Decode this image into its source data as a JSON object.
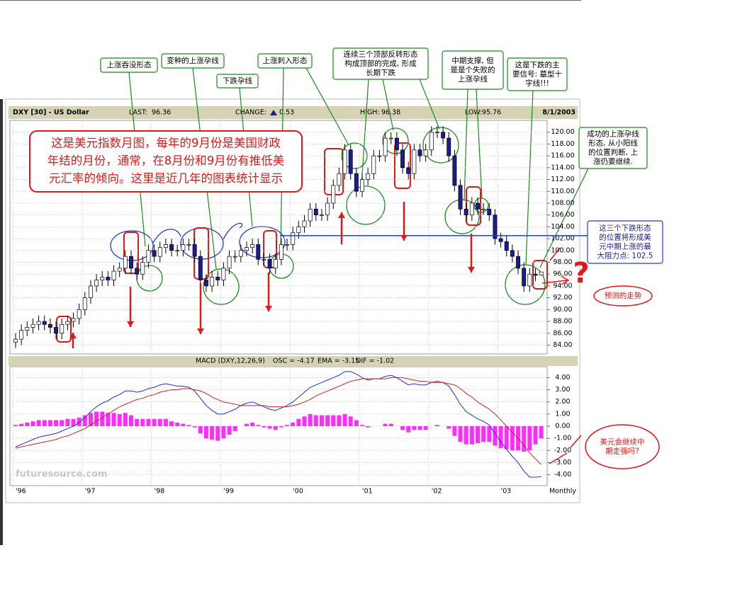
{
  "chart_data": [
    {
      "type": "candlestick",
      "title": "DXY [30] - US Dollar",
      "stats": [
        {
          "label": "LAST:",
          "value": 96.36
        },
        {
          "label": "CHANGE:",
          "value": 0.53
        },
        {
          "label": "HIGH:",
          "value": 96.38
        },
        {
          "label": "LOW:",
          "value": 95.76
        }
      ],
      "date": "8/1/2003",
      "categories": [
        "'96",
        null,
        null,
        null,
        null,
        null,
        null,
        null,
        null,
        null,
        null,
        null,
        "'97",
        null,
        null,
        null,
        null,
        null,
        null,
        null,
        null,
        null,
        null,
        null,
        "'98",
        null,
        null,
        null,
        null,
        null,
        null,
        null,
        null,
        null,
        null,
        null,
        "'99",
        null,
        null,
        null,
        null,
        null,
        null,
        null,
        null,
        null,
        null,
        null,
        "'00",
        null,
        null,
        null,
        null,
        null,
        null,
        null,
        null,
        null,
        null,
        null,
        "'01",
        null,
        null,
        null,
        null,
        null,
        null,
        null,
        null,
        null,
        null,
        null,
        "'02",
        null,
        null,
        null,
        null,
        null,
        null,
        null,
        null,
        null,
        null,
        null,
        "'03",
        null,
        null,
        null,
        null,
        null,
        null,
        null
      ],
      "open": [
        84.5,
        85,
        86.5,
        87,
        87.5,
        88,
        87.5,
        87,
        86,
        87.5,
        88,
        88.5,
        90,
        92,
        94,
        95,
        95.5,
        95,
        96.5,
        97,
        99,
        97,
        96,
        98,
        100,
        99,
        100.5,
        101,
        100,
        100,
        101,
        101,
        99,
        95,
        94,
        95.5,
        95,
        97,
        99,
        99,
        100,
        100.5,
        101,
        98.5,
        98.5,
        97,
        98.5,
        101,
        101,
        103,
        104,
        105,
        107,
        106,
        106,
        108,
        111,
        113,
        117,
        113,
        110,
        112,
        113,
        116,
        116,
        119,
        119,
        117,
        114,
        113,
        117,
        116,
        117,
        120,
        120,
        119,
        116,
        111,
        107,
        106,
        108,
        107,
        107,
        106,
        102,
        101.5,
        100,
        99,
        97,
        94,
        96,
        95.83
      ],
      "high": [
        86,
        87.5,
        88,
        88.5,
        89,
        89,
        88.5,
        88,
        88.5,
        89,
        89.5,
        91,
        93,
        95,
        96,
        96.5,
        96.5,
        97.5,
        98,
        100,
        100,
        98,
        99,
        101,
        101,
        101.5,
        102,
        102,
        101,
        102,
        102,
        102,
        100,
        96,
        96.5,
        96.5,
        98,
        100,
        100,
        101,
        101.5,
        102,
        102,
        99.5,
        99.5,
        99.5,
        102,
        102,
        104,
        105,
        106,
        108,
        108,
        107,
        109,
        112,
        114,
        118,
        118,
        114,
        113,
        114,
        117,
        117,
        120,
        120,
        120,
        118,
        115,
        118,
        118,
        118,
        121,
        121,
        121,
        120,
        117,
        112,
        108,
        109,
        109,
        108,
        108,
        107,
        103,
        102.5,
        101,
        100,
        98,
        97,
        97,
        96.38
      ],
      "low": [
        83.5,
        84,
        85.5,
        86,
        86.5,
        86.5,
        86,
        85,
        85,
        86.5,
        87,
        87.5,
        89,
        91,
        93,
        94,
        94,
        94,
        95.5,
        96,
        96,
        95,
        95,
        97,
        98,
        98,
        99.5,
        99,
        99,
        99,
        100,
        98,
        94,
        93,
        93,
        94,
        94,
        96,
        98,
        98,
        99,
        99.5,
        97.5,
        97.5,
        96,
        96,
        97.5,
        100,
        100,
        102,
        103,
        104,
        105,
        105,
        105,
        107,
        110,
        112,
        112,
        109,
        109,
        111,
        112,
        115,
        115,
        118,
        116,
        113,
        112,
        112,
        115,
        115,
        116,
        119,
        118,
        115,
        110,
        106,
        105,
        105,
        106,
        106,
        105,
        101,
        100.5,
        99,
        98,
        96,
        93,
        93,
        94.8,
        95.76
      ],
      "close": [
        85,
        86.5,
        87,
        87.5,
        88,
        87.5,
        87,
        86,
        87.5,
        88,
        88.5,
        90,
        92,
        94,
        95,
        95.5,
        95,
        96.5,
        97,
        99,
        97,
        96,
        98,
        100,
        99,
        100.5,
        101,
        100,
        100,
        101,
        101,
        99,
        95,
        94,
        95.5,
        95,
        97,
        99,
        99,
        100,
        100.5,
        101,
        98.5,
        98.5,
        97,
        98.5,
        101,
        101,
        103,
        104,
        105,
        107,
        106,
        106,
        108,
        111,
        113,
        117,
        113,
        110,
        112,
        113,
        116,
        116,
        119,
        119,
        117,
        114,
        113,
        117,
        116,
        117,
        120,
        120,
        119,
        116,
        111,
        107,
        106,
        108,
        107,
        107,
        106,
        102,
        101.5,
        100,
        99,
        97,
        94,
        96,
        95.8,
        96.36
      ],
      "up_color": "#ffffff",
      "down_color": "#1c1c8e",
      "ylim": [
        82.5,
        122
      ],
      "yticks": [
        {
          "value": 84,
          "label": "84.00"
        },
        {
          "value": 86,
          "label": "86.00"
        },
        {
          "value": 88,
          "label": "88.00"
        },
        {
          "value": 90,
          "label": "90.00"
        },
        {
          "value": 92,
          "label": "92.00"
        },
        {
          "value": 94,
          "label": "94.00"
        },
        {
          "value": 96,
          "label": "96.00"
        },
        {
          "value": 98,
          "label": "98.00"
        },
        {
          "value": 100,
          "label": "100.00"
        },
        {
          "value": 102,
          "label": "102.00"
        },
        {
          "value": 104,
          "label": "104.00"
        },
        {
          "value": 106,
          "label": "106.00"
        },
        {
          "value": 108,
          "label": "108.00"
        },
        {
          "value": 110,
          "label": "110.00"
        },
        {
          "value": 112,
          "label": "112.00"
        },
        {
          "value": 114,
          "label": "114.00"
        },
        {
          "value": 116,
          "label": "116.00"
        },
        {
          "value": 118,
          "label": "118.00"
        },
        {
          "value": 120,
          "label": "120.00"
        }
      ],
      "grid": true,
      "resistance_level": 102.5,
      "resistance_color": "#1f3fd0",
      "annotations": [
        [
          "上涨吞没形态"
        ],
        [
          "变种的上涨孕线"
        ],
        [
          "下跌孕线"
        ],
        [
          "上涨刺入形态"
        ],
        [
          "连续三个顶部反转形态",
          "构成顶部的完成, 形成",
          "长期下跌"
        ],
        [
          "中期支撑, 但",
          "是是个失败的",
          "上涨孕线"
        ],
        [
          "这是下跌的主",
          "要信号: 墓型十",
          "字线!!!"
        ],
        [
          "成功的上涨孕线",
          "形态, 从小阳线",
          "的位置判断, 上",
          "涨仍要继续."
        ],
        [
          "这三个下跌形态",
          "的位置将形成美",
          "元中期上涨的最",
          "大阻力点: 102.5"
        ],
        [
          "这是美元指数月图，每年的9月份是美国财政",
          "年结的月份，通常，在8月份和9月份有推低美",
          "元汇率的倾向。这里是近几年的图表统计显示"
        ],
        [
          "预测的走势"
        ],
        [
          "美元会继续中",
          "期走强吗?"
        ],
        [
          "?"
        ]
      ]
    },
    {
      "type": "line",
      "title": "MACD (DXY,12,26,9)",
      "series": [
        {
          "name": "OSC = -4.17",
          "color": "#1f2fd8",
          "values": [
            -1.7,
            -1.5,
            -1.3,
            -1.1,
            -0.9,
            -0.8,
            -0.7,
            -0.6,
            -0.4,
            -0.2,
            0,
            0.3,
            0.7,
            1.2,
            1.6,
            1.9,
            2.1,
            2.4,
            2.6,
            2.9,
            2.9,
            2.8,
            2.9,
            3.1,
            3.2,
            3.4,
            3.5,
            3.4,
            3.3,
            3.3,
            3.2,
            2.9,
            2.3,
            1.7,
            1.3,
            1,
            1,
            1.2,
            1.4,
            1.7,
            1.9,
            2,
            1.8,
            1.6,
            1.4,
            1.3,
            1.5,
            1.7,
            2,
            2.4,
            2.8,
            3.2,
            3.4,
            3.6,
            3.8,
            4,
            4.2,
            4.5,
            4.5,
            4.3,
            4,
            3.8,
            3.9,
            3.9,
            4.1,
            4.2,
            4,
            3.7,
            3.4,
            3.5,
            3.4,
            3.4,
            3.6,
            3.7,
            3.6,
            3.3,
            2.6,
            1.8,
            1.2,
            0.9,
            0.6,
            0.4,
            0.1,
            -0.6,
            -1.3,
            -1.9,
            -2.5,
            -3,
            -3.7,
            -4.2,
            -4.2,
            -4.17
          ]
        },
        {
          "name": "EMA = -3.15",
          "color": "#d42020",
          "values": [
            -1.8,
            -1.7,
            -1.6,
            -1.5,
            -1.4,
            -1.3,
            -1.2,
            -1.1,
            -0.9,
            -0.8,
            -0.6,
            -0.4,
            -0.2,
            0.1,
            0.4,
            0.7,
            1,
            1.3,
            1.6,
            1.8,
            2,
            2.2,
            2.3,
            2.5,
            2.6,
            2.8,
            2.9,
            3,
            3,
            3.1,
            3.1,
            3,
            2.9,
            2.7,
            2.4,
            2.2,
            2,
            1.9,
            1.8,
            1.7,
            1.7,
            1.7,
            1.7,
            1.7,
            1.6,
            1.6,
            1.6,
            1.6,
            1.7,
            1.8,
            2,
            2.2,
            2.5,
            2.7,
            2.9,
            3.1,
            3.3,
            3.5,
            3.7,
            3.8,
            3.9,
            3.9,
            3.9,
            3.9,
            3.9,
            4,
            4,
            4,
            3.9,
            3.8,
            3.7,
            3.7,
            3.6,
            3.6,
            3.6,
            3.5,
            3.4,
            3.1,
            2.7,
            2.4,
            2,
            1.7,
            1.4,
            1,
            0.5,
            0,
            -0.5,
            -1,
            -1.6,
            -2.2,
            -2.7,
            -3.15
          ]
        },
        {
          "name": "DIF = -1.02",
          "color": "#ff2cff",
          "type": "bar",
          "values": [
            0.1,
            0.2,
            0.3,
            0.4,
            0.5,
            0.5,
            0.5,
            0.5,
            0.5,
            0.6,
            0.6,
            0.7,
            0.9,
            1.1,
            1.2,
            1.2,
            1.1,
            1.1,
            1,
            1.1,
            0.9,
            0.6,
            0.6,
            0.6,
            0.6,
            0.6,
            0.6,
            0.4,
            0.3,
            0.2,
            0.1,
            -0.1,
            -0.6,
            -1,
            -1.1,
            -1.2,
            -1,
            -0.7,
            -0.4,
            0,
            0.2,
            0.3,
            0.1,
            -0.1,
            -0.2,
            -0.3,
            -0.1,
            0.1,
            0.3,
            0.6,
            0.8,
            1,
            0.9,
            0.9,
            0.9,
            0.9,
            0.9,
            1,
            0.8,
            0.5,
            0.1,
            -0.1,
            0,
            0,
            0.2,
            0.2,
            0,
            -0.3,
            -0.5,
            -0.3,
            -0.3,
            -0.3,
            0,
            0.1,
            0,
            -0.2,
            -0.8,
            -1.3,
            -1.5,
            -1.5,
            -1.4,
            -1.3,
            -1.3,
            -1.6,
            -1.8,
            -1.9,
            -2,
            -2,
            -2.1,
            -2,
            -1.5,
            -1.02
          ]
        }
      ],
      "ylim": [
        -4.9,
        4.9
      ],
      "yticks": [
        {
          "value": 4,
          "label": "4.00"
        },
        {
          "value": 3,
          "label": "3.00"
        },
        {
          "value": 2,
          "label": "2.00"
        },
        {
          "value": 1,
          "label": "1.00"
        },
        {
          "value": 0,
          "label": "0.00"
        },
        {
          "value": -1,
          "label": "-1.00"
        },
        {
          "value": -2,
          "label": "-2.00"
        },
        {
          "value": -3,
          "label": "-3.00"
        },
        {
          "value": -4,
          "label": "-4.00"
        }
      ],
      "grid": true,
      "x_label": "Monthly",
      "watermark": "futuresource.com"
    }
  ]
}
